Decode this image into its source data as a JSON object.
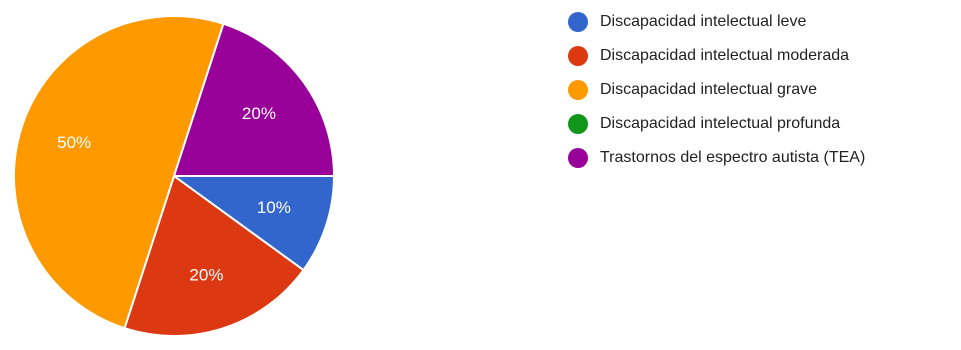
{
  "chart_data": {
    "type": "pie",
    "title": "",
    "legend_position": "right",
    "start_angle_deg": 0,
    "direction": "clockwise",
    "series": [
      {
        "name": "Discapacidad intelectual leve",
        "value": 10,
        "label": "10%",
        "color": "#3366cc"
      },
      {
        "name": "Discapacidad intelectual moderada",
        "value": 20,
        "label": "20%",
        "color": "#dc3912"
      },
      {
        "name": "Discapacidad intelectual grave",
        "value": 50,
        "label": "50%",
        "color": "#ff9900"
      },
      {
        "name": "Discapacidad intelectual profunda",
        "value": 0,
        "label": "",
        "color": "#109618"
      },
      {
        "name": "Trastornos del espectro autista (TEA)",
        "value": 20,
        "label": "20%",
        "color": "#990099"
      }
    ]
  }
}
